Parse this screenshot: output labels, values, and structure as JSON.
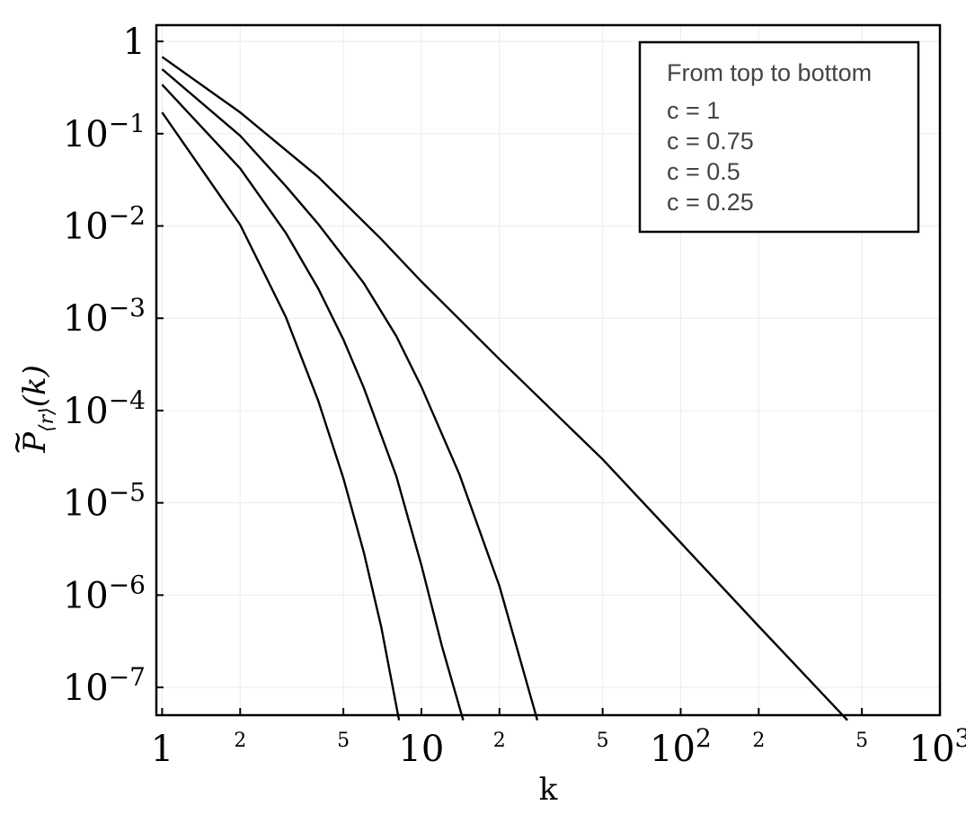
{
  "chart_data": {
    "type": "line",
    "xlabel": "k",
    "ylabel_math": {
      "base": "P",
      "accent": "~",
      "subscript": "⟨r⟩",
      "argument": "(k)"
    },
    "xscale": "log",
    "yscale": "log",
    "xlim": [
      0.95,
      1000
    ],
    "ylim": [
      5e-08,
      1.5
    ],
    "grid": true,
    "legend": {
      "placement": "top-right",
      "title": "From top to bottom",
      "entries": [
        "c = 1",
        "c = 0.75",
        "c = 0.5",
        "c = 0.25"
      ]
    },
    "x_major_ticks": [
      {
        "value": 1,
        "base": "1",
        "exp": ""
      },
      {
        "value": 10,
        "base": "10",
        "exp": ""
      },
      {
        "value": 100,
        "base": "10",
        "exp": "2"
      },
      {
        "value": 1000,
        "base": "10",
        "exp": "3"
      }
    ],
    "x_minor_ticks": [
      {
        "value": 2,
        "label": "2"
      },
      {
        "value": 5,
        "label": "5"
      },
      {
        "value": 20,
        "label": "2"
      },
      {
        "value": 50,
        "label": "5"
      },
      {
        "value": 200,
        "label": "2"
      },
      {
        "value": 500,
        "label": "5"
      }
    ],
    "y_ticks": [
      {
        "value": 1,
        "base": "1",
        "exp": ""
      },
      {
        "value": 0.1,
        "base": "10",
        "exp": "−1"
      },
      {
        "value": 0.01,
        "base": "10",
        "exp": "−2"
      },
      {
        "value": 0.001,
        "base": "10",
        "exp": "−3"
      },
      {
        "value": 0.0001,
        "base": "10",
        "exp": "−4"
      },
      {
        "value": 1e-05,
        "base": "10",
        "exp": "−5"
      },
      {
        "value": 1e-06,
        "base": "10",
        "exp": "−6"
      },
      {
        "value": 1e-07,
        "base": "10",
        "exp": "−7"
      }
    ],
    "series": [
      {
        "x": [
          1,
          2,
          4,
          7,
          10,
          20,
          50,
          100,
          200,
          440
        ],
        "y": [
          0.68,
          0.17,
          0.034,
          0.0072,
          0.0025,
          0.00036,
          2.96e-05,
          3.7e-06,
          4.6e-07,
          4.4e-08
        ]
      },
      {
        "x": [
          1,
          2,
          3,
          4,
          6,
          8,
          10,
          14,
          20,
          28
        ],
        "y": [
          0.5,
          0.095,
          0.027,
          0.0105,
          0.0024,
          0.00064,
          0.00018,
          2.05e-05,
          1.25e-06,
          4.4e-08
        ]
      },
      {
        "x": [
          1,
          2,
          3,
          4,
          5,
          6,
          8,
          10,
          12,
          14.5
        ],
        "y": [
          0.34,
          0.042,
          0.0084,
          0.0021,
          0.00059,
          0.000176,
          1.95e-05,
          2.1e-06,
          2.8e-07,
          4.4e-08
        ]
      },
      {
        "x": [
          1,
          2,
          3,
          4,
          5,
          6,
          7,
          8.2
        ],
        "y": [
          0.17,
          0.0103,
          0.00103,
          0.000128,
          1.85e-05,
          2.9e-06,
          4.5e-07,
          4.4e-08
        ]
      }
    ]
  }
}
